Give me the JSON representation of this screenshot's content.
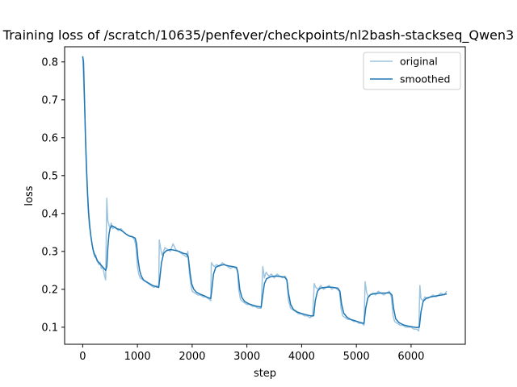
{
  "chart_data": {
    "type": "line",
    "title": "Training loss of /scratch/10635/penfever/checkpoints/nl2bash-stackseq_Qwen3",
    "xlabel": "step",
    "ylabel": "loss",
    "xlim": [
      -330,
      6990
    ],
    "ylim": [
      0.055,
      0.84
    ],
    "xticks": [
      0,
      1000,
      2000,
      3000,
      4000,
      5000,
      6000
    ],
    "yticks": [
      0.1,
      0.2,
      0.3,
      0.4,
      0.5,
      0.6,
      0.7,
      0.8
    ],
    "grid": false,
    "legend": {
      "position": "top-right",
      "entries": [
        "original",
        "smoothed"
      ]
    },
    "series": [
      {
        "name": "original",
        "color": "#9ec4df",
        "points": [
          [
            0,
            0.815
          ],
          [
            20,
            0.74
          ],
          [
            40,
            0.66
          ],
          [
            60,
            0.55
          ],
          [
            80,
            0.47
          ],
          [
            100,
            0.41
          ],
          [
            120,
            0.37
          ],
          [
            140,
            0.35
          ],
          [
            160,
            0.33
          ],
          [
            180,
            0.31
          ],
          [
            200,
            0.295
          ],
          [
            220,
            0.285
          ],
          [
            240,
            0.29
          ],
          [
            260,
            0.275
          ],
          [
            280,
            0.27
          ],
          [
            300,
            0.265
          ],
          [
            320,
            0.27
          ],
          [
            340,
            0.255
          ],
          [
            360,
            0.26
          ],
          [
            380,
            0.25
          ],
          [
            400,
            0.235
          ],
          [
            420,
            0.225
          ],
          [
            440,
            0.44
          ],
          [
            460,
            0.38
          ],
          [
            480,
            0.37
          ],
          [
            500,
            0.36
          ],
          [
            520,
            0.375
          ],
          [
            550,
            0.36
          ],
          [
            600,
            0.365
          ],
          [
            650,
            0.355
          ],
          [
            700,
            0.36
          ],
          [
            750,
            0.35
          ],
          [
            800,
            0.345
          ],
          [
            850,
            0.34
          ],
          [
            900,
            0.34
          ],
          [
            950,
            0.33
          ],
          [
            975,
            0.31
          ],
          [
            1000,
            0.26
          ],
          [
            1025,
            0.24
          ],
          [
            1050,
            0.23
          ],
          [
            1100,
            0.225
          ],
          [
            1150,
            0.22
          ],
          [
            1200,
            0.215
          ],
          [
            1250,
            0.21
          ],
          [
            1300,
            0.205
          ],
          [
            1350,
            0.21
          ],
          [
            1390,
            0.205
          ],
          [
            1400,
            0.33
          ],
          [
            1420,
            0.31
          ],
          [
            1450,
            0.29
          ],
          [
            1480,
            0.3
          ],
          [
            1500,
            0.31
          ],
          [
            1550,
            0.305
          ],
          [
            1600,
            0.3
          ],
          [
            1650,
            0.32
          ],
          [
            1700,
            0.305
          ],
          [
            1750,
            0.3
          ],
          [
            1800,
            0.295
          ],
          [
            1850,
            0.29
          ],
          [
            1900,
            0.285
          ],
          [
            1920,
            0.3
          ],
          [
            1950,
            0.24
          ],
          [
            1980,
            0.21
          ],
          [
            2000,
            0.195
          ],
          [
            2050,
            0.19
          ],
          [
            2100,
            0.185
          ],
          [
            2150,
            0.185
          ],
          [
            2200,
            0.18
          ],
          [
            2250,
            0.18
          ],
          [
            2300,
            0.175
          ],
          [
            2340,
            0.17
          ],
          [
            2350,
            0.27
          ],
          [
            2400,
            0.26
          ],
          [
            2450,
            0.265
          ],
          [
            2500,
            0.26
          ],
          [
            2550,
            0.27
          ],
          [
            2600,
            0.265
          ],
          [
            2650,
            0.26
          ],
          [
            2700,
            0.255
          ],
          [
            2750,
            0.26
          ],
          [
            2800,
            0.255
          ],
          [
            2830,
            0.25
          ],
          [
            2850,
            0.2
          ],
          [
            2880,
            0.175
          ],
          [
            2900,
            0.17
          ],
          [
            2950,
            0.165
          ],
          [
            3000,
            0.16
          ],
          [
            3050,
            0.16
          ],
          [
            3100,
            0.155
          ],
          [
            3150,
            0.155
          ],
          [
            3200,
            0.15
          ],
          [
            3260,
            0.15
          ],
          [
            3290,
            0.26
          ],
          [
            3320,
            0.23
          ],
          [
            3350,
            0.245
          ],
          [
            3400,
            0.235
          ],
          [
            3450,
            0.24
          ],
          [
            3500,
            0.23
          ],
          [
            3550,
            0.24
          ],
          [
            3600,
            0.235
          ],
          [
            3650,
            0.23
          ],
          [
            3700,
            0.235
          ],
          [
            3730,
            0.225
          ],
          [
            3760,
            0.17
          ],
          [
            3800,
            0.15
          ],
          [
            3850,
            0.145
          ],
          [
            3900,
            0.14
          ],
          [
            3950,
            0.135
          ],
          [
            4000,
            0.135
          ],
          [
            4050,
            0.13
          ],
          [
            4100,
            0.13
          ],
          [
            4150,
            0.125
          ],
          [
            4200,
            0.13
          ],
          [
            4230,
            0.215
          ],
          [
            4260,
            0.205
          ],
          [
            4300,
            0.2
          ],
          [
            4350,
            0.21
          ],
          [
            4400,
            0.2
          ],
          [
            4450,
            0.205
          ],
          [
            4500,
            0.21
          ],
          [
            4550,
            0.2
          ],
          [
            4600,
            0.205
          ],
          [
            4650,
            0.2
          ],
          [
            4690,
            0.195
          ],
          [
            4720,
            0.15
          ],
          [
            4750,
            0.13
          ],
          [
            4800,
            0.125
          ],
          [
            4850,
            0.12
          ],
          [
            4900,
            0.12
          ],
          [
            4950,
            0.115
          ],
          [
            5000,
            0.115
          ],
          [
            5050,
            0.11
          ],
          [
            5100,
            0.11
          ],
          [
            5140,
            0.105
          ],
          [
            5160,
            0.22
          ],
          [
            5190,
            0.19
          ],
          [
            5220,
            0.18
          ],
          [
            5250,
            0.185
          ],
          [
            5300,
            0.19
          ],
          [
            5350,
            0.185
          ],
          [
            5400,
            0.195
          ],
          [
            5450,
            0.19
          ],
          [
            5500,
            0.185
          ],
          [
            5550,
            0.19
          ],
          [
            5600,
            0.195
          ],
          [
            5640,
            0.18
          ],
          [
            5670,
            0.13
          ],
          [
            5700,
            0.115
          ],
          [
            5750,
            0.11
          ],
          [
            5800,
            0.105
          ],
          [
            5850,
            0.105
          ],
          [
            5900,
            0.1
          ],
          [
            5950,
            0.1
          ],
          [
            6000,
            0.1
          ],
          [
            6050,
            0.095
          ],
          [
            6100,
            0.095
          ],
          [
            6140,
            0.09
          ],
          [
            6160,
            0.21
          ],
          [
            6180,
            0.175
          ],
          [
            6220,
            0.17
          ],
          [
            6250,
            0.18
          ],
          [
            6300,
            0.175
          ],
          [
            6350,
            0.18
          ],
          [
            6400,
            0.185
          ],
          [
            6450,
            0.18
          ],
          [
            6500,
            0.185
          ],
          [
            6550,
            0.19
          ],
          [
            6600,
            0.185
          ],
          [
            6650,
            0.195
          ]
        ]
      },
      {
        "name": "smoothed",
        "color": "#1f77b4",
        "points": [
          [
            0,
            0.815
          ],
          [
            15,
            0.8
          ],
          [
            30,
            0.72
          ],
          [
            50,
            0.61
          ],
          [
            70,
            0.52
          ],
          [
            90,
            0.45
          ],
          [
            110,
            0.4
          ],
          [
            130,
            0.365
          ],
          [
            150,
            0.34
          ],
          [
            170,
            0.32
          ],
          [
            190,
            0.305
          ],
          [
            210,
            0.295
          ],
          [
            240,
            0.285
          ],
          [
            270,
            0.275
          ],
          [
            300,
            0.27
          ],
          [
            330,
            0.265
          ],
          [
            360,
            0.26
          ],
          [
            390,
            0.255
          ],
          [
            420,
            0.25
          ],
          [
            440,
            0.26
          ],
          [
            460,
            0.31
          ],
          [
            480,
            0.345
          ],
          [
            500,
            0.36
          ],
          [
            530,
            0.368
          ],
          [
            570,
            0.365
          ],
          [
            620,
            0.36
          ],
          [
            680,
            0.358
          ],
          [
            740,
            0.352
          ],
          [
            800,
            0.345
          ],
          [
            860,
            0.34
          ],
          [
            920,
            0.338
          ],
          [
            960,
            0.335
          ],
          [
            985,
            0.32
          ],
          [
            1010,
            0.28
          ],
          [
            1040,
            0.25
          ],
          [
            1070,
            0.235
          ],
          [
            1110,
            0.225
          ],
          [
            1160,
            0.22
          ],
          [
            1220,
            0.215
          ],
          [
            1280,
            0.21
          ],
          [
            1340,
            0.207
          ],
          [
            1390,
            0.205
          ],
          [
            1410,
            0.23
          ],
          [
            1440,
            0.27
          ],
          [
            1480,
            0.295
          ],
          [
            1530,
            0.302
          ],
          [
            1600,
            0.305
          ],
          [
            1680,
            0.303
          ],
          [
            1760,
            0.3
          ],
          [
            1840,
            0.295
          ],
          [
            1900,
            0.293
          ],
          [
            1930,
            0.285
          ],
          [
            1960,
            0.245
          ],
          [
            1990,
            0.215
          ],
          [
            2030,
            0.2
          ],
          [
            2080,
            0.192
          ],
          [
            2150,
            0.187
          ],
          [
            2220,
            0.183
          ],
          [
            2290,
            0.178
          ],
          [
            2340,
            0.176
          ],
          [
            2360,
            0.2
          ],
          [
            2390,
            0.24
          ],
          [
            2430,
            0.258
          ],
          [
            2500,
            0.263
          ],
          [
            2580,
            0.265
          ],
          [
            2660,
            0.262
          ],
          [
            2740,
            0.26
          ],
          [
            2810,
            0.258
          ],
          [
            2840,
            0.24
          ],
          [
            2870,
            0.2
          ],
          [
            2910,
            0.178
          ],
          [
            2960,
            0.168
          ],
          [
            3030,
            0.162
          ],
          [
            3110,
            0.158
          ],
          [
            3190,
            0.155
          ],
          [
            3260,
            0.153
          ],
          [
            3290,
            0.185
          ],
          [
            3320,
            0.215
          ],
          [
            3360,
            0.228
          ],
          [
            3430,
            0.233
          ],
          [
            3520,
            0.235
          ],
          [
            3610,
            0.234
          ],
          [
            3690,
            0.232
          ],
          [
            3730,
            0.225
          ],
          [
            3760,
            0.19
          ],
          [
            3800,
            0.16
          ],
          [
            3850,
            0.147
          ],
          [
            3920,
            0.14
          ],
          [
            4000,
            0.136
          ],
          [
            4080,
            0.133
          ],
          [
            4160,
            0.13
          ],
          [
            4220,
            0.13
          ],
          [
            4250,
            0.17
          ],
          [
            4290,
            0.195
          ],
          [
            4340,
            0.203
          ],
          [
            4420,
            0.205
          ],
          [
            4500,
            0.206
          ],
          [
            4580,
            0.205
          ],
          [
            4660,
            0.203
          ],
          [
            4700,
            0.195
          ],
          [
            4730,
            0.16
          ],
          [
            4770,
            0.137
          ],
          [
            4830,
            0.126
          ],
          [
            4900,
            0.12
          ],
          [
            4980,
            0.117
          ],
          [
            5060,
            0.113
          ],
          [
            5140,
            0.11
          ],
          [
            5170,
            0.15
          ],
          [
            5210,
            0.178
          ],
          [
            5260,
            0.186
          ],
          [
            5340,
            0.189
          ],
          [
            5430,
            0.19
          ],
          [
            5520,
            0.19
          ],
          [
            5610,
            0.191
          ],
          [
            5650,
            0.185
          ],
          [
            5680,
            0.15
          ],
          [
            5720,
            0.122
          ],
          [
            5780,
            0.112
          ],
          [
            5860,
            0.106
          ],
          [
            5940,
            0.103
          ],
          [
            6020,
            0.101
          ],
          [
            6100,
            0.099
          ],
          [
            6150,
            0.1
          ],
          [
            6180,
            0.14
          ],
          [
            6220,
            0.168
          ],
          [
            6280,
            0.177
          ],
          [
            6360,
            0.18
          ],
          [
            6440,
            0.182
          ],
          [
            6520,
            0.184
          ],
          [
            6600,
            0.186
          ],
          [
            6650,
            0.188
          ]
        ]
      }
    ]
  }
}
